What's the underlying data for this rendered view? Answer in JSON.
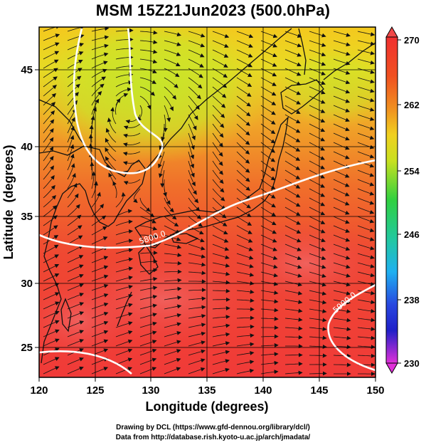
{
  "title": "MSM 15Z21Jun2023 (500.0hPa)",
  "x_axis": {
    "label": "Longitude (degrees)",
    "range": [
      120,
      150
    ],
    "ticks": [
      120,
      125,
      130,
      135,
      140,
      145,
      150
    ],
    "tick_labels": [
      "120",
      "125",
      "130",
      "135",
      "140",
      "145",
      "150"
    ]
  },
  "y_axis": {
    "label": "Latitude  (degrees)",
    "range": [
      22.4,
      47.6
    ],
    "ticks": [
      25,
      30,
      35,
      40,
      45
    ],
    "tick_labels": [
      "25",
      "30",
      "35",
      "40",
      "45"
    ]
  },
  "colorbar": {
    "range": [
      230,
      270
    ],
    "tick_labels": [
      "270",
      "262",
      "254",
      "246",
      "238",
      "230"
    ],
    "colors": [
      "#e030d8",
      "#2020c8",
      "#1fb0f0",
      "#22c8a0",
      "#30d040",
      "#c8e020",
      "#f0d020",
      "#f09020",
      "#f05020",
      "#f03030"
    ]
  },
  "contour_labels": [
    {
      "text": "5800.0",
      "lon": 132.2,
      "lat": 33.5
    },
    {
      "text": "5900.0",
      "lon": 148.2,
      "lat": 29.1
    }
  ],
  "footer": {
    "line1": "Drawing by DCL (https://www.gfd-dennou.org/library/dcl/)",
    "line2": "Data from http://database.rish.kyoto-u.ac.jp/arch/jmadata/"
  },
  "chart_data": {
    "type": "heatmap",
    "title": "MSM 15Z21Jun2023 (500.0hPa)",
    "xlabel": "Longitude (degrees)",
    "ylabel": "Latitude  (degrees)",
    "xlim": [
      120,
      150
    ],
    "ylim": [
      22.4,
      47.6
    ],
    "colorbar_range": [
      230,
      270
    ],
    "grid": true,
    "contour_levels": [
      5800.0,
      5900.0
    ]
  }
}
